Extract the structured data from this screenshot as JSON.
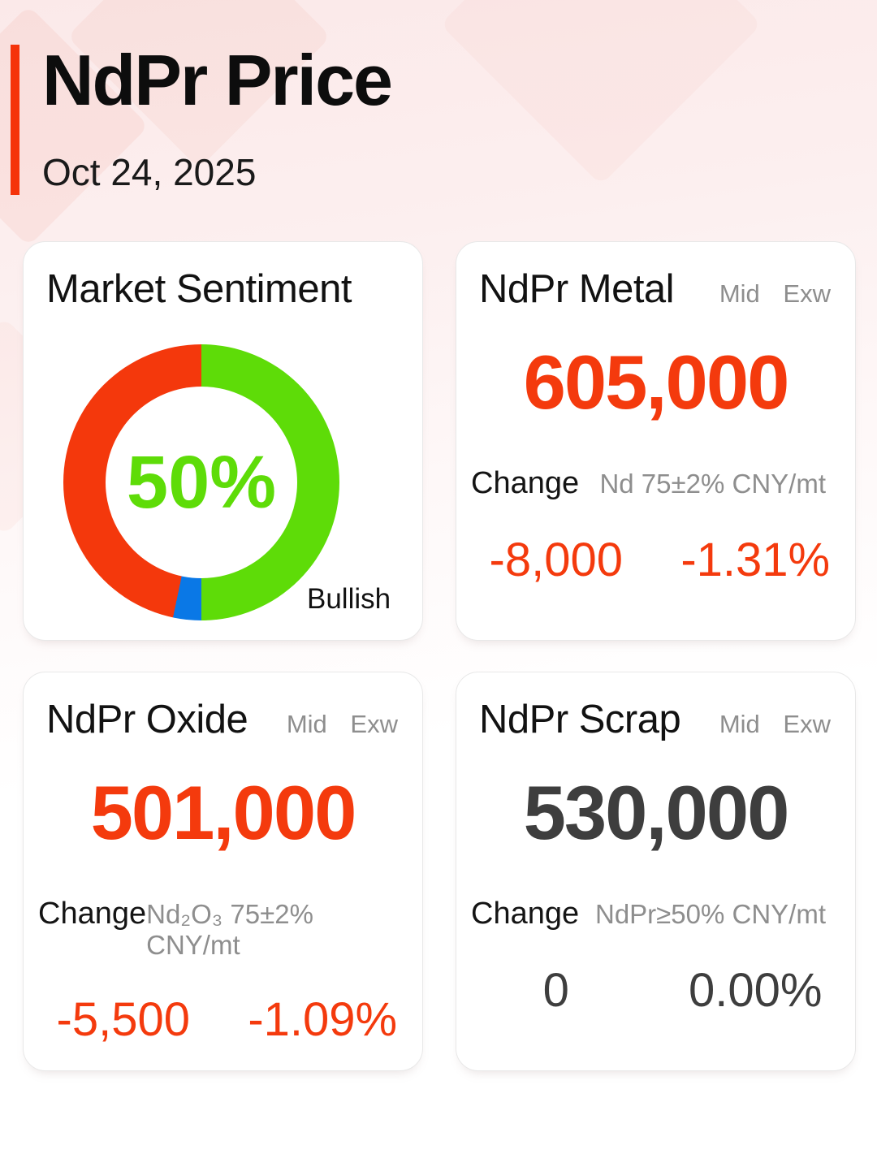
{
  "header": {
    "title": "NdPr Price",
    "date": "Oct 24, 2025"
  },
  "colors": {
    "accent_bar_red": "#F5330A",
    "value_red": "#F43A0D",
    "value_dark": "#3E3E3E",
    "muted_gray": "#8E8E8E",
    "text_black": "#121212",
    "donut_green": "#5EDC08",
    "donut_blue": "#0A78E6",
    "donut_red": "#F4380C",
    "card_border": "#E8E8E8",
    "background_pink": "#FBE9E9"
  },
  "sentiment": {
    "title": "Market Sentiment"
  },
  "chart_data": {
    "type": "pie",
    "donut": true,
    "title": "Market Sentiment",
    "center_label": "50%",
    "annotation": "Bullish",
    "start_angle_deg": 0,
    "direction": "clockwise",
    "legend_position": "bottom-right",
    "segments": [
      {
        "label": "Bullish",
        "value": 50,
        "color": "#5EDC08"
      },
      {
        "label": "",
        "value": 3.3,
        "color": "#0A78E6"
      },
      {
        "label": "",
        "value": 46.7,
        "color": "#F4380C"
      }
    ]
  },
  "price_cards": [
    {
      "title": "NdPr Metal",
      "qualifiers": [
        "Mid",
        "Exw"
      ],
      "price": "605,000",
      "value_color": "#F43A0D",
      "change_label": "Change",
      "spec": "Nd 75±2% CNY/mt",
      "change_value": "-8,000",
      "change_percent": "-1.31%"
    },
    {
      "title": "NdPr Oxide",
      "qualifiers": [
        "Mid",
        "Exw"
      ],
      "price": "501,000",
      "value_color": "#F43A0D",
      "change_label": "Change",
      "spec": "Nd₂O₃ 75±2% CNY/mt",
      "change_value": "-5,500",
      "change_percent": "-1.09%"
    },
    {
      "title": "NdPr Scrap",
      "qualifiers": [
        "Mid",
        "Exw"
      ],
      "price": "530,000",
      "value_color": "#3E3E3E",
      "change_label": "Change",
      "spec": "NdPr≥50% CNY/mt",
      "change_value": "0",
      "change_percent": "0.00%"
    }
  ]
}
